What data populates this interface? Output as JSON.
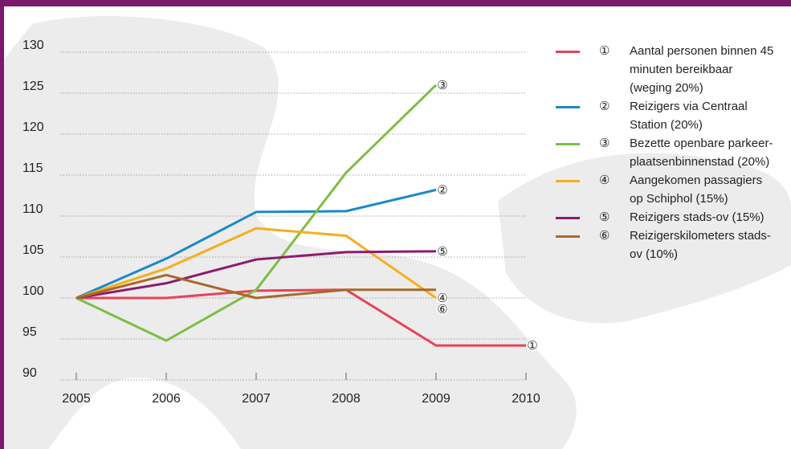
{
  "chart_data": {
    "type": "line",
    "x": [
      2005,
      2006,
      2007,
      2008,
      2009,
      2010
    ],
    "xlim": [
      2005,
      2010
    ],
    "xticks": [
      2005,
      2006,
      2007,
      2008,
      2009,
      2010
    ],
    "ylim": [
      90,
      130
    ],
    "yticks": [
      90,
      95,
      100,
      105,
      110,
      115,
      120,
      125,
      130
    ],
    "grid": true,
    "series": [
      {
        "label": "①",
        "name": "Aantal personen binnen 45 minuten bereikbaar (weging 20%)",
        "color": "#e8425a",
        "values": [
          100,
          100,
          100.9,
          101,
          94.2,
          94.2
        ]
      },
      {
        "label": "②",
        "name": "Reizigers via Centraal Station (20%)",
        "color": "#1a8ac4",
        "values": [
          100,
          104.8,
          110.5,
          110.6,
          113.2,
          null
        ]
      },
      {
        "label": "③",
        "name": "Bezette openbare parkeer-plaatsenbinnenstad (20%)",
        "color": "#7dbe44",
        "values": [
          100,
          94.8,
          101,
          115.3,
          126,
          null
        ]
      },
      {
        "label": "④",
        "name": "Aangekomen passagiers op Schiphol (15%)",
        "color": "#f6ae1c",
        "values": [
          100,
          103.6,
          108.5,
          107.6,
          100,
          null
        ]
      },
      {
        "label": "⑤",
        "name": "Reizigers stads-ov (15%)",
        "color": "#8e1a6e",
        "values": [
          100,
          101.8,
          104.7,
          105.6,
          105.7,
          null
        ]
      },
      {
        "label": "⑥",
        "name": "Reizigerskilometers stads-ov (10%)",
        "color": "#a8692a",
        "values": [
          100,
          102.8,
          100,
          101,
          101,
          null
        ]
      }
    ]
  }
}
